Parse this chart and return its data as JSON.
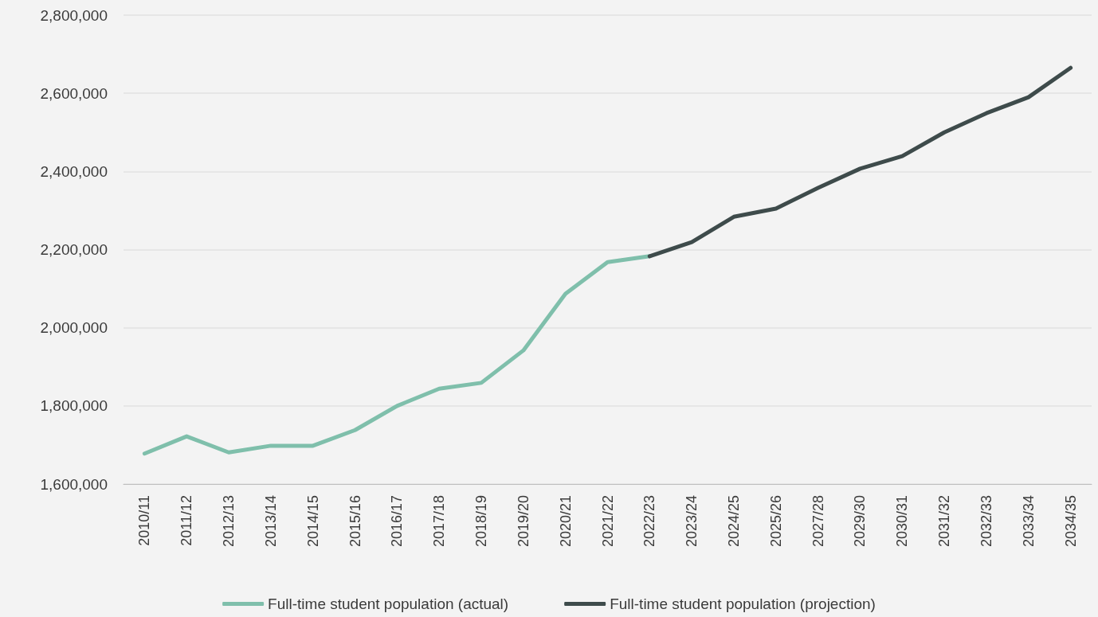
{
  "chart_data": {
    "type": "line",
    "categories": [
      "2010/11",
      "2011/12",
      "2012/13",
      "2013/14",
      "2014/15",
      "2015/16",
      "2016/17",
      "2017/18",
      "2018/19",
      "2019/20",
      "2020/21",
      "2021/22",
      "2022/23",
      "2023/24",
      "2024/25",
      "2025/26",
      "2027/28",
      "2029/30",
      "2030/31",
      "2031/32",
      "2032/33",
      "2033/34",
      "2034/35"
    ],
    "series": [
      {
        "name": "Full-time student population (actual)",
        "color": "#7fbfab",
        "values": [
          1678000,
          1722000,
          1681000,
          1698000,
          1698000,
          1738000,
          1800000,
          1844000,
          1859000,
          1942000,
          2087000,
          2168000,
          2183000,
          null,
          null,
          null,
          null,
          null,
          null,
          null,
          null,
          null,
          null
        ]
      },
      {
        "name": "Full-time student population (projection)",
        "color": "#3e4b4b",
        "values": [
          null,
          null,
          null,
          null,
          null,
          null,
          null,
          null,
          null,
          null,
          null,
          null,
          2183000,
          2219000,
          2284000,
          2305000,
          2358000,
          2407000,
          2439000,
          2500000,
          2549000,
          2590000,
          2665000
        ]
      }
    ],
    "ylim": [
      1600000,
      2800000
    ],
    "yticks": [
      {
        "value": 1600000,
        "label": "1,600,000"
      },
      {
        "value": 1800000,
        "label": "1,800,000"
      },
      {
        "value": 2000000,
        "label": "2,000,000"
      },
      {
        "value": 2200000,
        "label": "2,200,000"
      },
      {
        "value": 2400000,
        "label": "2,400,000"
      },
      {
        "value": 2600000,
        "label": "2,600,000"
      },
      {
        "value": 2800000,
        "label": "2,800,000"
      }
    ],
    "grid": "y",
    "legend": "bottom",
    "marker": "none",
    "line_style": "solid"
  }
}
